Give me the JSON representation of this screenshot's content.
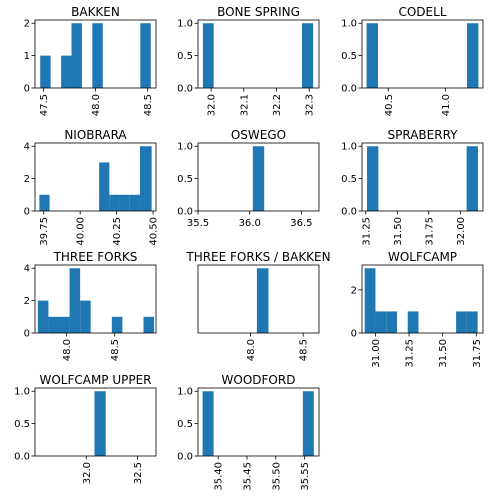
{
  "chart_data": [
    {
      "type": "histogram",
      "title": "BAKKEN",
      "xlim": [
        47.42,
        48.58
      ],
      "ylim": [
        0,
        2.1
      ],
      "xticks": [
        47.5,
        48.0,
        48.5
      ],
      "xtick_labels": [
        "47.5",
        "48.0",
        "48.5"
      ],
      "xtick_rotation": 90,
      "yticks": [
        0,
        1,
        2
      ],
      "ytick_labels": [
        "0",
        "1",
        "2"
      ],
      "bins": [
        {
          "x0": 47.47,
          "x1": 47.57,
          "count": 1
        },
        {
          "x0": 47.67,
          "x1": 47.77,
          "count": 1
        },
        {
          "x0": 47.77,
          "x1": 47.87,
          "count": 2
        },
        {
          "x0": 47.97,
          "x1": 48.07,
          "count": 2
        },
        {
          "x0": 48.43,
          "x1": 48.53,
          "count": 2
        }
      ]
    },
    {
      "type": "histogram",
      "title": "BONE SPRING",
      "xlim": [
        31.96,
        32.33
      ],
      "ylim": [
        0,
        1.05
      ],
      "xticks": [
        32.0,
        32.1,
        32.2,
        32.3
      ],
      "xtick_labels": [
        "32.0",
        "32.1",
        "32.2",
        "32.3"
      ],
      "xtick_rotation": 90,
      "yticks": [
        0,
        0.5,
        1.0
      ],
      "ytick_labels": [
        "0.0",
        "0.5",
        "1.0"
      ],
      "bins": [
        {
          "x0": 31.975,
          "x1": 32.008,
          "count": 1
        },
        {
          "x0": 32.278,
          "x1": 32.312,
          "count": 1
        }
      ]
    },
    {
      "type": "histogram",
      "title": "CODELL",
      "xlim": [
        40.27,
        41.33
      ],
      "ylim": [
        0,
        1.05
      ],
      "xticks": [
        40.5,
        41.0
      ],
      "xtick_labels": [
        "40.5",
        "41.0"
      ],
      "xtick_rotation": 90,
      "yticks": [
        0,
        0.5,
        1.0
      ],
      "ytick_labels": [
        "0.0",
        "0.5",
        "1.0"
      ],
      "bins": [
        {
          "x0": 40.31,
          "x1": 40.41,
          "count": 1
        },
        {
          "x0": 41.19,
          "x1": 41.29,
          "count": 1
        }
      ]
    },
    {
      "type": "histogram",
      "title": "NIOBRARA",
      "xlim": [
        39.69,
        40.52
      ],
      "ylim": [
        0,
        4.2
      ],
      "xticks": [
        39.75,
        40.0,
        40.25,
        40.5
      ],
      "xtick_labels": [
        "39.75",
        "40.00",
        "40.25",
        "40.50"
      ],
      "xtick_rotation": 90,
      "yticks": [
        0,
        2,
        4
      ],
      "ytick_labels": [
        "0",
        "2",
        "4"
      ],
      "bins": [
        {
          "x0": 39.72,
          "x1": 39.79,
          "count": 1
        },
        {
          "x0": 40.13,
          "x1": 40.2,
          "count": 3
        },
        {
          "x0": 40.2,
          "x1": 40.27,
          "count": 1
        },
        {
          "x0": 40.27,
          "x1": 40.34,
          "count": 1
        },
        {
          "x0": 40.34,
          "x1": 40.41,
          "count": 1
        },
        {
          "x0": 40.41,
          "x1": 40.49,
          "count": 4
        }
      ]
    },
    {
      "type": "histogram",
      "title": "OSWEGO",
      "xlim": [
        35.5,
        36.67
      ],
      "ylim": [
        0,
        1.05
      ],
      "xticks": [
        35.5,
        36.0,
        36.5
      ],
      "xtick_labels": [
        "35.5",
        "36.0",
        "36.5"
      ],
      "xtick_rotation": 0,
      "yticks": [
        0,
        0.5,
        1.0
      ],
      "ytick_labels": [
        "0.0",
        "0.5",
        "1.0"
      ],
      "bins": [
        {
          "x0": 36.03,
          "x1": 36.14,
          "count": 1
        }
      ]
    },
    {
      "type": "histogram",
      "title": "SPRABERRY",
      "xlim": [
        31.22,
        32.18
      ],
      "ylim": [
        0,
        1.05
      ],
      "xticks": [
        31.25,
        31.5,
        31.75,
        32.0
      ],
      "xtick_labels": [
        "31.25",
        "31.50",
        "31.75",
        "32.00"
      ],
      "xtick_rotation": 90,
      "yticks": [
        0,
        0.5,
        1.0
      ],
      "ytick_labels": [
        "0.0",
        "0.5",
        "1.0"
      ],
      "bins": [
        {
          "x0": 31.26,
          "x1": 31.35,
          "count": 1
        },
        {
          "x0": 32.05,
          "x1": 32.14,
          "count": 1
        }
      ]
    },
    {
      "type": "histogram",
      "title": "THREE FORKS",
      "xlim": [
        47.67,
        48.93
      ],
      "ylim": [
        0,
        4.2
      ],
      "xticks": [
        48.0,
        48.5
      ],
      "xtick_labels": [
        "48.0",
        "48.5"
      ],
      "xtick_rotation": 90,
      "yticks": [
        0,
        2,
        4
      ],
      "ytick_labels": [
        "0",
        "2",
        "4"
      ],
      "bins": [
        {
          "x0": 47.7,
          "x1": 47.81,
          "count": 2
        },
        {
          "x0": 47.81,
          "x1": 47.92,
          "count": 1
        },
        {
          "x0": 47.92,
          "x1": 48.03,
          "count": 1
        },
        {
          "x0": 48.03,
          "x1": 48.14,
          "count": 4
        },
        {
          "x0": 48.14,
          "x1": 48.25,
          "count": 2
        },
        {
          "x0": 48.47,
          "x1": 48.58,
          "count": 1
        },
        {
          "x0": 48.8,
          "x1": 48.91,
          "count": 1
        }
      ]
    },
    {
      "type": "histogram",
      "title": "THREE FORKS / BAKKEN",
      "xlim": [
        47.5,
        48.65
      ],
      "ylim": [
        0,
        1.05
      ],
      "xticks": [
        48.0,
        48.5
      ],
      "xtick_labels": [
        "48.0",
        "48.5"
      ],
      "xtick_rotation": 90,
      "yticks": [],
      "ytick_labels": [],
      "bins": [
        {
          "x0": 48.06,
          "x1": 48.17,
          "count": 1
        }
      ]
    },
    {
      "type": "histogram",
      "title": "WOLFCAMP",
      "xlim": [
        30.9,
        31.8
      ],
      "ylim": [
        0,
        3.15
      ],
      "xticks": [
        31.0,
        31.25,
        31.5,
        31.75
      ],
      "xtick_labels": [
        "31.00",
        "31.25",
        "31.50",
        "31.75"
      ],
      "xtick_rotation": 90,
      "yticks": [
        0,
        2
      ],
      "ytick_labels": [
        "0",
        "2"
      ],
      "bins": [
        {
          "x0": 30.92,
          "x1": 31.0,
          "count": 3
        },
        {
          "x0": 31.0,
          "x1": 31.08,
          "count": 1
        },
        {
          "x0": 31.08,
          "x1": 31.16,
          "count": 1
        },
        {
          "x0": 31.24,
          "x1": 31.32,
          "count": 1
        },
        {
          "x0": 31.6,
          "x1": 31.68,
          "count": 1
        },
        {
          "x0": 31.68,
          "x1": 31.76,
          "count": 1
        }
      ]
    },
    {
      "type": "histogram",
      "title": "WOLFCAMP UPPER",
      "xlim": [
        31.5,
        32.68
      ],
      "ylim": [
        0,
        1.05
      ],
      "xticks": [
        32.0,
        32.5
      ],
      "xtick_labels": [
        "32.0",
        "32.5"
      ],
      "xtick_rotation": 90,
      "yticks": [
        0,
        0.5,
        1.0
      ],
      "ytick_labels": [
        "0.0",
        "0.5",
        "1.0"
      ],
      "bins": [
        {
          "x0": 32.08,
          "x1": 32.19,
          "count": 1
        }
      ]
    },
    {
      "type": "histogram",
      "title": "WOODFORD",
      "xlim": [
        35.365,
        35.575
      ],
      "ylim": [
        0,
        1.05
      ],
      "xticks": [
        35.4,
        35.45,
        35.5,
        35.55
      ],
      "xtick_labels": [
        "35.40",
        "35.45",
        "35.50",
        "35.55"
      ],
      "xtick_rotation": 90,
      "yticks": [
        0,
        0.5,
        1.0
      ],
      "ytick_labels": [
        "0.0",
        "0.5",
        "1.0"
      ],
      "bins": [
        {
          "x0": 35.373,
          "x1": 35.392,
          "count": 1
        },
        {
          "x0": 35.547,
          "x1": 35.566,
          "count": 1
        }
      ]
    }
  ],
  "colors": {
    "bar": "#1f77b4",
    "axis": "#000000"
  },
  "grid": false
}
